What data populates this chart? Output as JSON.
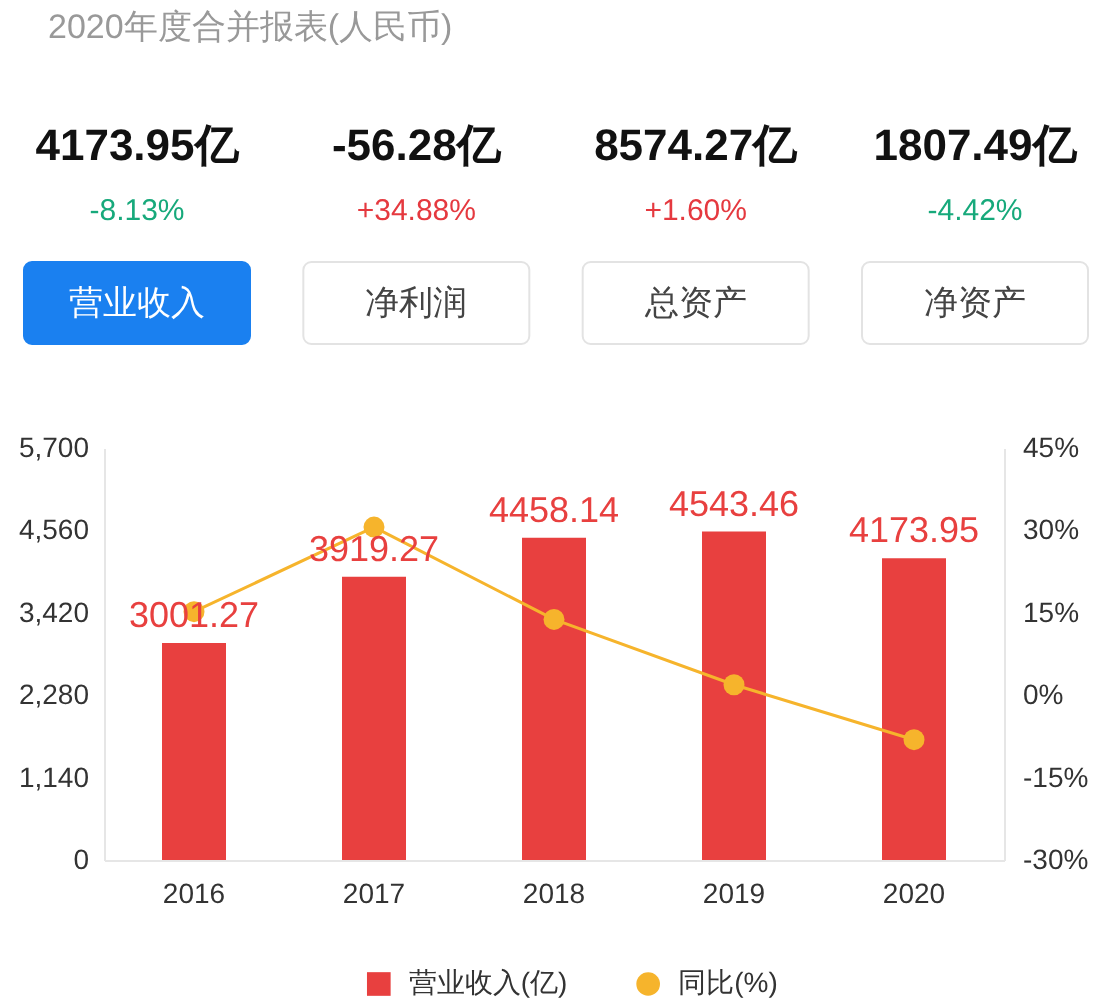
{
  "chart_data": [
    {
      "type": "other",
      "title": "2020年度合并报表(人民币)",
      "categories": [
        "营业收入",
        "净利润",
        "总资产",
        "净资产"
      ],
      "colors": [
        "#1a80f0",
        "#ffffff",
        "#ffffff",
        "#ffffff"
      ],
      "series": [
        {
          "values": [
            4173.95,
            -56.28,
            8574.27,
            1807.49
          ],
          "value_labels": [
            "4173.95亿",
            "-56.28亿",
            "8574.27亿",
            "1807.49亿"
          ],
          "color": "#111111"
        },
        {
          "values": [
            -8.13,
            34.88,
            1.6,
            -4.42
          ],
          "value_labels": [
            "-8.13%",
            "+34.88%",
            "+1.60%",
            "-4.42%"
          ],
          "colors": [
            "#17a97b",
            "#e5393f",
            "#e5393f",
            "#17a97b"
          ]
        }
      ]
    },
    {
      "type": "bar",
      "categories": [
        "2016",
        "2017",
        "2018",
        "2019",
        "2020"
      ],
      "series": [
        {
          "name": "营业收入(亿)",
          "type": "bar",
          "color": "#e8403f",
          "values": [
            3001.27,
            3919.27,
            4458.14,
            4543.46,
            4173.95
          ],
          "value_labels": [
            "3001.27",
            "3919.27",
            "4458.14",
            "4543.46",
            "4173.95"
          ]
        },
        {
          "name": "同比(%)",
          "type": "line",
          "axis": "y2",
          "color": "#f6b42c",
          "values": [
            15.2,
            30.6,
            13.8,
            1.9,
            -8.1
          ]
        }
      ],
      "ylim": [
        0,
        5700
      ],
      "yticks": [
        0,
        {
          "value": 1140,
          "label": "1,140"
        },
        {
          "value": 2280,
          "label": "2,280"
        },
        {
          "value": 3420,
          "label": "3,420"
        },
        {
          "value": 4560,
          "label": "4,560"
        },
        {
          "value": 5700,
          "label": "5,700"
        }
      ],
      "y2lim": [
        -30,
        45
      ],
      "y2ticks": [
        {
          "value": -30,
          "label": "-30%"
        },
        {
          "value": -15,
          "label": "-15%"
        },
        {
          "value": 0,
          "label": "0%"
        },
        {
          "value": 15,
          "label": "15%"
        },
        {
          "value": 30,
          "label": "30%"
        },
        {
          "value": 45,
          "label": "45%"
        }
      ],
      "grid": false,
      "legend": "bottom",
      "marker": "circle",
      "line_style": "solid"
    }
  ]
}
